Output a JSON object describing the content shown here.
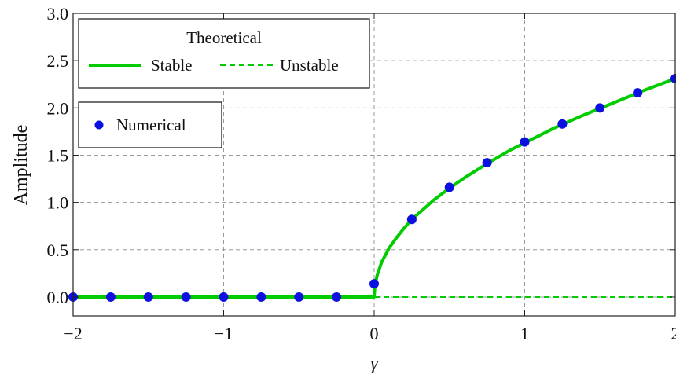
{
  "chart_data": {
    "type": "line",
    "xlabel": "γ",
    "ylabel": "Amplitude",
    "xlim": [
      -2,
      2
    ],
    "ylim": [
      -0.2,
      3.0
    ],
    "x_ticks": [
      -2,
      -1,
      0,
      1,
      2
    ],
    "y_ticks": [
      0.0,
      0.5,
      1.0,
      1.5,
      2.0,
      2.5,
      3.0
    ],
    "x_tick_labels": [
      "−2",
      "−1",
      "0",
      "1",
      "2"
    ],
    "y_tick_labels": [
      "0.0",
      "0.5",
      "1.0",
      "1.5",
      "2.0",
      "2.5",
      "3.0"
    ],
    "grid": true,
    "colors": {
      "theory": "#00cc00",
      "numerical": "#0a10e0"
    },
    "legend_theoretical": {
      "title": "Theoretical",
      "placement": "top-left",
      "entries": [
        {
          "label": "Stable",
          "style": "solid"
        },
        {
          "label": "Unstable",
          "style": "dashed"
        }
      ]
    },
    "legend_numerical": {
      "placement": "upper-left",
      "entries": [
        {
          "label": "Numerical",
          "style": "marker"
        }
      ]
    },
    "series": [
      {
        "name": "Stable",
        "style": "solid",
        "x": [
          -2.0,
          -1.0,
          0.0,
          0.0,
          0.005,
          0.02,
          0.05,
          0.1,
          0.15,
          0.2,
          0.25,
          0.3,
          0.4,
          0.5,
          0.6,
          0.75,
          0.9,
          1.0,
          1.2,
          1.4,
          1.6,
          1.8,
          2.0
        ],
        "y": [
          0.0,
          0.0,
          0.0,
          0.0,
          0.12,
          0.23,
          0.37,
          0.52,
          0.63,
          0.73,
          0.82,
          0.89,
          1.03,
          1.15,
          1.26,
          1.41,
          1.55,
          1.63,
          1.79,
          1.93,
          2.06,
          2.19,
          2.31
        ]
      },
      {
        "name": "Unstable",
        "style": "dashed",
        "x": [
          0.0,
          2.0
        ],
        "y": [
          0.0,
          0.0
        ]
      },
      {
        "name": "Numerical",
        "style": "marker",
        "x": [
          -2.0,
          -1.75,
          -1.5,
          -1.25,
          -1.0,
          -0.75,
          -0.5,
          -0.25,
          0.0,
          0.25,
          0.5,
          0.75,
          1.0,
          1.25,
          1.5,
          1.75,
          2.0
        ],
        "y": [
          0.0,
          0.0,
          0.0,
          0.0,
          0.0,
          0.0,
          0.0,
          0.0,
          0.14,
          0.82,
          1.16,
          1.42,
          1.64,
          1.83,
          2.0,
          2.16,
          2.31
        ]
      }
    ]
  }
}
